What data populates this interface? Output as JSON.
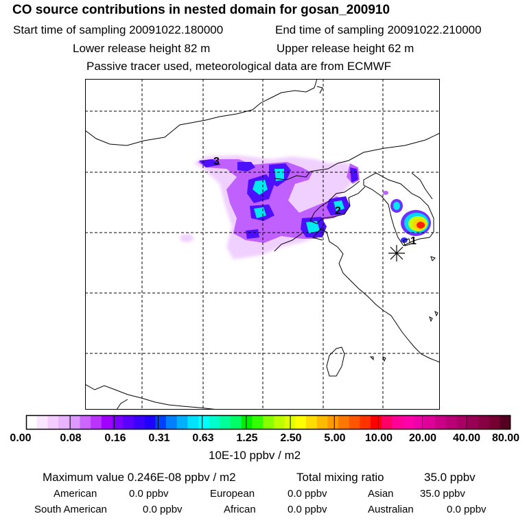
{
  "header": {
    "title": "CO  source contributions in nested domain for gosan_200910",
    "start_label": "Start time of sampling 20091022.180000",
    "end_label": "End time of sampling 20091022.210000",
    "lower_release": "Lower release height   82 m",
    "upper_release": "Upper release height   62 m",
    "tracer_note": "Passive tracer used, meteorological data are from ECMWF"
  },
  "map": {
    "markers": [
      "1",
      "2",
      "3"
    ],
    "receptor_icon": "asterisk-icon"
  },
  "colorbar": {
    "unit_label": "10E-10 ppbv / m2",
    "tick_labels": [
      "0.00",
      "0.08",
      "0.16",
      "0.31",
      "0.63",
      "1.25",
      "2.50",
      "5.00",
      "10.00",
      "20.00",
      "40.00",
      "80.00"
    ],
    "colors": [
      "#ffffff",
      "#fbe6ff",
      "#f4ccff",
      "#e8b3ff",
      "#dc99ff",
      "#cc66ff",
      "#bb33ff",
      "#a000ff",
      "#7a00ff",
      "#5a00ff",
      "#3c00ff",
      "#2000ff",
      "#0040ff",
      "#0080ff",
      "#00b0ff",
      "#00e0ff",
      "#00ffff",
      "#00ffcc",
      "#00ff99",
      "#00ff66",
      "#00ee00",
      "#33ff00",
      "#88ff00",
      "#bbff00",
      "#ddff00",
      "#ffff00",
      "#ffdd00",
      "#ffbb00",
      "#ff9900",
      "#ff7700",
      "#ff5500",
      "#ff3300",
      "#ff0000",
      "#ff0066",
      "#ff0099",
      "#ff00aa",
      "#ee00aa",
      "#dd0099",
      "#cc0088",
      "#bb0077",
      "#aa0066",
      "#990055",
      "#880044",
      "#770033",
      "#550022"
    ]
  },
  "footer": {
    "max_label": "Maximum value  0.246E-08 ppbv / m2",
    "total_label": "Total mixing ratio",
    "total_value": "35.0 ppbv",
    "american_label": "American",
    "american_value": "0.0 ppbv",
    "european_label": "European",
    "european_value": "0.0 ppbv",
    "asian_label": "Asian",
    "asian_value": "35.0 ppbv",
    "south_american_label": "South American",
    "south_american_value": "0.0 ppbv",
    "african_label": "African",
    "african_value": "0.0 ppbv",
    "australian_label": "Australian",
    "australian_value": "0.0 ppbv"
  }
}
